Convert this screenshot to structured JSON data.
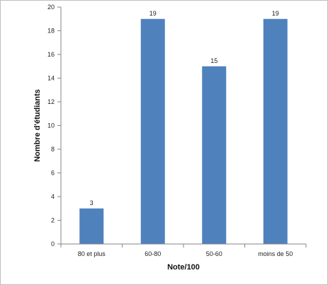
{
  "chart_data": {
    "type": "bar",
    "categories": [
      "80 et plus",
      "60-80",
      "50-60",
      "moins de 50"
    ],
    "values": [
      3,
      19,
      15,
      19
    ],
    "title": "",
    "xlabel": "Note/100",
    "ylabel": "Nombre d'étudiants",
    "ylim": [
      0,
      20
    ],
    "ytick_step": 2,
    "grid": false,
    "bar_color": "#4f81bd",
    "data_labels": true
  }
}
